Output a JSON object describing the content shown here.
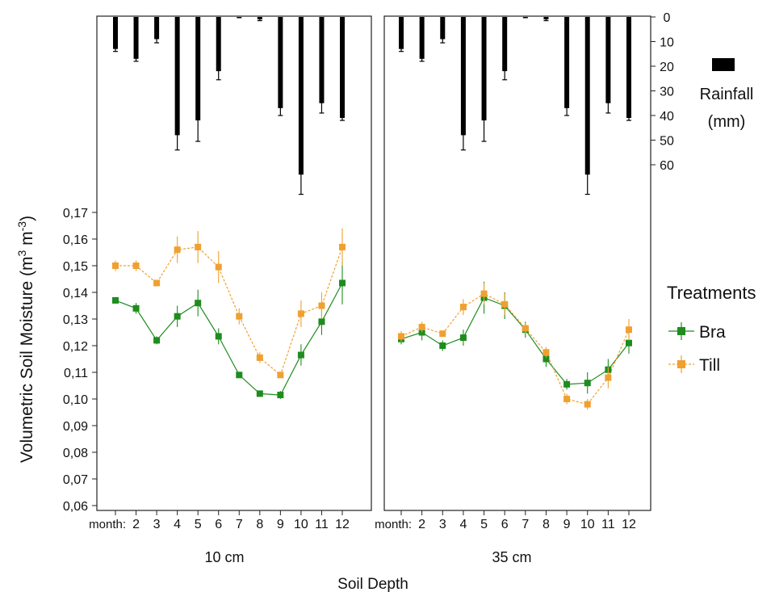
{
  "chart_data": {
    "type": "line",
    "ylabel": "Volumetric Soil Moisture (m",
    "ylabel_sup1": "3",
    "ylabel_mid": " m",
    "ylabel_sup2": "-3",
    "ylabel_end": ")",
    "xlabel": "Soil Depth",
    "y_ticks": [
      "0,17",
      "0,16",
      "0,15",
      "0,14",
      "0,13",
      "0,12",
      "0,11",
      "0,10",
      "0,09",
      "0,08",
      "0,07",
      "0,06"
    ],
    "ylim": [
      0.055,
      0.175
    ],
    "rain_ticks": [
      "0",
      "10",
      "20",
      "30",
      "40",
      "50",
      "60"
    ],
    "rain_lim": [
      0,
      70
    ],
    "rain_label_line1": "Rainfall",
    "rain_label_line2": "(mm)",
    "month_tick_prefix": "month:",
    "month_ticks": [
      "2",
      "3",
      "4",
      "5",
      "6",
      "7",
      "8",
      "9",
      "10",
      "11",
      "12"
    ],
    "legend_title": "Treatments",
    "legend_position": "right",
    "colors": {
      "Bra": "#1e8c1e",
      "Till": "#f0a030",
      "rain": "#000000"
    },
    "panels": [
      {
        "label": "10 cm",
        "months": [
          1,
          2,
          3,
          4,
          5,
          6,
          7,
          8,
          9,
          10,
          11,
          12
        ],
        "rainfall": [
          13,
          17,
          9,
          48,
          42,
          22,
          0,
          1,
          37,
          64,
          35,
          41
        ],
        "rainfall_err": [
          1,
          1,
          1.5,
          6,
          8.5,
          3.5,
          0,
          0.5,
          3,
          8,
          4,
          1
        ],
        "series": [
          {
            "name": "Bra",
            "values": [
              0.137,
              0.134,
              0.122,
              0.131,
              0.136,
              0.1235,
              0.109,
              0.102,
              0.1015,
              0.1165,
              0.129,
              0.1435
            ],
            "err": [
              0.001,
              0.002,
              0.0015,
              0.004,
              0.005,
              0.003,
              0.001,
              0.001,
              0.0015,
              0.004,
              0.005,
              0.008
            ]
          },
          {
            "name": "Till",
            "values": [
              0.15,
              0.15,
              0.1435,
              0.156,
              0.157,
              0.1495,
              0.131,
              0.1155,
              0.109,
              0.132,
              0.135,
              0.157
            ],
            "err": [
              0.002,
              0.002,
              0.001,
              0.005,
              0.006,
              0.006,
              0.003,
              0.002,
              0.001,
              0.005,
              0.005,
              0.007
            ]
          }
        ]
      },
      {
        "label": "35 cm",
        "months": [
          1,
          2,
          3,
          4,
          5,
          6,
          7,
          8,
          9,
          10,
          11,
          12
        ],
        "rainfall": [
          13,
          17,
          9,
          48,
          42,
          22,
          0,
          1,
          37,
          64,
          35,
          41
        ],
        "rainfall_err": [
          1,
          1,
          1.5,
          6,
          8.5,
          3.5,
          0,
          0.5,
          3,
          8,
          4,
          1
        ],
        "series": [
          {
            "name": "Bra",
            "values": [
              0.1225,
              0.125,
              0.12,
              0.123,
              0.138,
              0.135,
              0.126,
              0.115,
              0.1055,
              0.106,
              0.111,
              0.121
            ],
            "err": [
              0.002,
              0.003,
              0.002,
              0.003,
              0.006,
              0.005,
              0.003,
              0.003,
              0.002,
              0.004,
              0.004,
              0.004
            ]
          },
          {
            "name": "Till",
            "values": [
              0.1235,
              0.127,
              0.1245,
              0.1345,
              0.1395,
              0.1355,
              0.1265,
              0.1175,
              0.1,
              0.098,
              0.108,
              0.126
            ],
            "err": [
              0.002,
              0.002,
              0.001,
              0.003,
              0.004,
              0.004,
              0.002,
              0.002,
              0.002,
              0.002,
              0.004,
              0.004
            ]
          }
        ]
      }
    ]
  }
}
